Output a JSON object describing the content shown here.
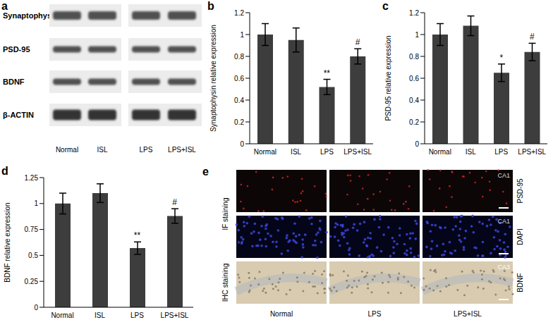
{
  "panel_a": {
    "label": "a",
    "rows": [
      "Synaptophysin",
      "PSD-95",
      "BDNF",
      "β-ACTIN"
    ],
    "lanes": [
      "Normal",
      "ISL",
      "LPS",
      "LPS+ISL"
    ]
  },
  "chart_data": [
    {
      "type": "bar",
      "title": "b",
      "ylabel": "Synaptophysin relative expression",
      "categories": [
        "Normal",
        "ISL",
        "LPS",
        "LPS+ISL"
      ],
      "values": [
        1.0,
        0.95,
        0.52,
        0.8
      ],
      "error": [
        0.1,
        0.11,
        0.07,
        0.07
      ],
      "annotations": [
        {
          "category": "LPS",
          "text": "**"
        },
        {
          "category": "LPS+ISL",
          "text": "#"
        }
      ],
      "color": "#3d3d3d",
      "ylim": [
        0,
        1.2
      ],
      "yticks": [
        0,
        0.2,
        0.4,
        0.6,
        0.8,
        1,
        1.2
      ]
    },
    {
      "type": "bar",
      "title": "c",
      "ylabel": "PSD-95 relative expression",
      "categories": [
        "Normal",
        "ISL",
        "LPS",
        "LPS+ISL"
      ],
      "values": [
        1.0,
        1.08,
        0.65,
        0.84
      ],
      "error": [
        0.1,
        0.09,
        0.08,
        0.08
      ],
      "annotations": [
        {
          "category": "LPS",
          "text": "*"
        },
        {
          "category": "LPS+ISL",
          "text": "#"
        }
      ],
      "color": "#3d3d3d",
      "ylim": [
        0,
        1.2
      ],
      "yticks": [
        0,
        0.2,
        0.4,
        0.6,
        0.8,
        1,
        1.2
      ]
    },
    {
      "type": "bar",
      "title": "d",
      "ylabel": "BDNF relative expression",
      "categories": [
        "Normal",
        "ISL",
        "LPS",
        "LPS+ISL"
      ],
      "values": [
        1.0,
        1.1,
        0.57,
        0.88
      ],
      "error": [
        0.1,
        0.09,
        0.06,
        0.07
      ],
      "annotations": [
        {
          "category": "LPS",
          "text": "**"
        },
        {
          "category": "LPS+ISL",
          "text": "#"
        }
      ],
      "color": "#3d3d3d",
      "ylim": [
        0,
        1.25
      ],
      "yticks": [
        0,
        0.25,
        0.5,
        0.75,
        1,
        1.25
      ]
    }
  ],
  "panel_e": {
    "label": "e",
    "columns": [
      "Normal",
      "LPS",
      "LPS+ISL"
    ],
    "rows": [
      {
        "group": "IF staining",
        "region": "CA1",
        "stain": "PSD-95"
      },
      {
        "group": "IF staining",
        "region": "CA1",
        "stain": "DAPI"
      },
      {
        "group": "IHC staining",
        "region": "CA3",
        "stain": "BDNF"
      }
    ]
  }
}
